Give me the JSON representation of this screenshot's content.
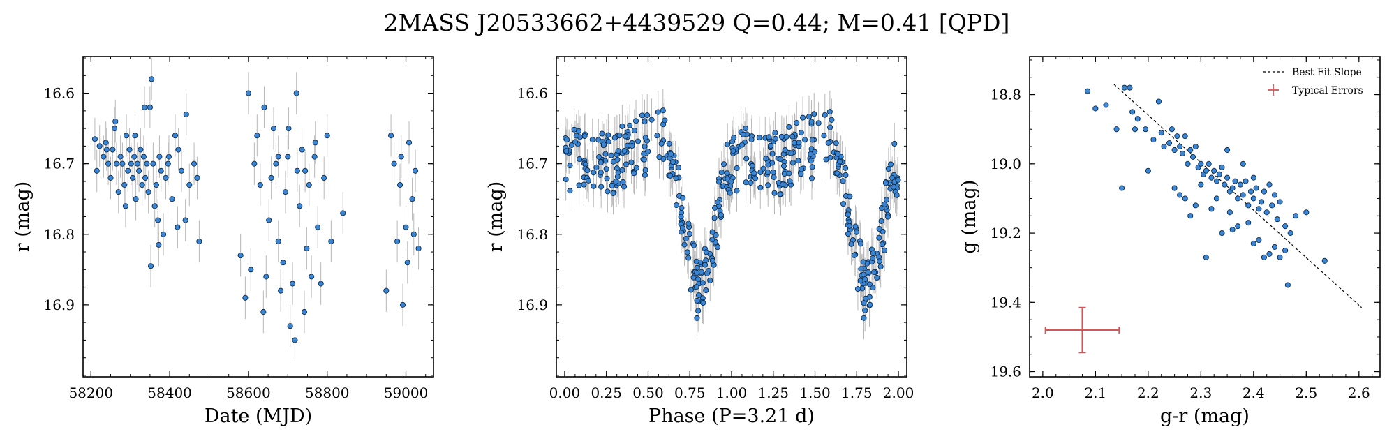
{
  "figure": {
    "title": "2MASS J20533662+4439529  Q=0.44; M=0.41 [QPD]"
  },
  "colors": {
    "marker_fill": "#3a86d4",
    "marker_edge": "#0d2a4a",
    "errorbar": "#b8b8b8",
    "typical_error": "#d05858",
    "fit_line": "#000000"
  },
  "chart_data": [
    {
      "type": "scatter",
      "title": "",
      "xlabel": "Date (MJD)",
      "ylabel": "r (mag)",
      "xlim": [
        58180,
        59070
      ],
      "ylim": [
        16.548,
        17.002
      ],
      "y_inverted": true,
      "xticks": [
        58200,
        58400,
        58600,
        58800,
        59000
      ],
      "yticks": [
        16.6,
        16.7,
        16.8,
        16.9
      ],
      "xticklabels": [
        "58200",
        "58400",
        "58600",
        "58800",
        "59000"
      ],
      "yticklabels": [
        "16.6",
        "16.7",
        "16.8",
        "16.9"
      ],
      "yerr": 0.03,
      "x": [
        58210,
        58215,
        58222,
        58232,
        58238,
        58244,
        58250,
        58255,
        58260,
        58265,
        58270,
        58275,
        58280,
        58285,
        58290,
        58294,
        58298,
        58302,
        58306,
        58310,
        58314,
        58318,
        58322,
        58326,
        58330,
        58334,
        58338,
        58342,
        58346,
        58350,
        58354,
        58358,
        58362,
        58366,
        58370,
        58374,
        58378,
        58384,
        58390,
        58398,
        58406,
        58414,
        58422,
        58430,
        58440,
        58450,
        58462,
        58475,
        58240,
        58262,
        58288,
        58312,
        58336,
        58352,
        58372,
        58396,
        58420,
        58442,
        58470,
        58580,
        58592,
        58606,
        58615,
        58622,
        58630,
        58638,
        58645,
        58652,
        58658,
        58664,
        58670,
        58676,
        58682,
        58688,
        58694,
        58700,
        58706,
        58712,
        58718,
        58724,
        58730,
        58736,
        58742,
        58748,
        58754,
        58760,
        58768,
        58776,
        58784,
        58792,
        58800,
        58810,
        58840,
        58600,
        58640,
        58676,
        58702,
        58722,
        58744,
        58770,
        58950,
        58962,
        58970,
        58978,
        58985,
        58992,
        59000,
        59008,
        59016,
        59024,
        59032,
        58988,
        59004,
        59020
      ],
      "y": [
        16.665,
        16.71,
        16.675,
        16.69,
        16.67,
        16.7,
        16.72,
        16.68,
        16.65,
        16.7,
        16.74,
        16.69,
        16.7,
        16.73,
        16.66,
        16.71,
        16.68,
        16.7,
        16.72,
        16.69,
        16.75,
        16.7,
        16.71,
        16.68,
        16.73,
        16.69,
        16.72,
        16.7,
        16.74,
        16.62,
        16.58,
        16.7,
        16.76,
        16.73,
        16.78,
        16.69,
        16.71,
        16.8,
        16.72,
        16.69,
        16.75,
        16.66,
        16.68,
        16.71,
        16.78,
        16.73,
        16.7,
        16.81,
        16.68,
        16.64,
        16.76,
        16.66,
        16.62,
        16.845,
        16.815,
        16.7,
        16.79,
        16.63,
        16.72,
        16.83,
        16.89,
        16.85,
        16.7,
        16.66,
        16.73,
        16.91,
        16.86,
        16.78,
        16.72,
        16.65,
        16.7,
        16.81,
        16.88,
        16.84,
        16.74,
        16.69,
        16.93,
        16.87,
        16.95,
        16.71,
        16.76,
        16.68,
        16.91,
        16.82,
        16.73,
        16.86,
        16.69,
        16.79,
        16.87,
        16.72,
        16.66,
        16.81,
        16.77,
        16.6,
        16.62,
        16.69,
        16.65,
        16.6,
        16.71,
        16.67,
        16.88,
        16.66,
        16.7,
        16.81,
        16.73,
        16.9,
        16.79,
        16.67,
        16.75,
        16.71,
        16.82,
        16.69,
        16.84,
        16.8
      ],
      "points": "r vs MJD"
    },
    {
      "type": "scatter",
      "title": "",
      "xlabel": "Phase (P=3.21 d)",
      "ylabel": "r (mag)",
      "xlim": [
        -0.05,
        2.05
      ],
      "ylim": [
        16.548,
        17.002
      ],
      "y_inverted": true,
      "xticks": [
        0.0,
        0.25,
        0.5,
        0.75,
        1.0,
        1.25,
        1.5,
        1.75,
        2.0
      ],
      "yticks": [
        16.6,
        16.7,
        16.8,
        16.9
      ],
      "xticklabels": [
        "0.00",
        "0.25",
        "0.50",
        "0.75",
        "1.00",
        "1.25",
        "1.50",
        "1.75",
        "2.00"
      ],
      "yticklabels": [
        "16.6",
        "16.7",
        "16.8",
        "16.9"
      ],
      "yerr": 0.03,
      "phase_profile": {
        "phase": [
          0.0,
          0.1,
          0.2,
          0.3,
          0.4,
          0.5,
          0.6,
          0.65,
          0.7,
          0.75,
          0.8,
          0.85,
          0.9,
          0.95,
          1.0
        ],
        "r_mag": [
          16.7,
          16.69,
          16.7,
          16.7,
          16.68,
          16.67,
          16.66,
          16.7,
          16.76,
          16.84,
          16.88,
          16.86,
          16.8,
          16.73,
          16.7
        ]
      }
    },
    {
      "type": "scatter",
      "title": "",
      "xlabel": "g-r (mag)",
      "ylabel": "g (mag)",
      "xlim": [
        1.975,
        2.64
      ],
      "ylim": [
        18.69,
        19.615
      ],
      "y_inverted": true,
      "xticks": [
        2.0,
        2.1,
        2.2,
        2.3,
        2.4,
        2.5,
        2.6
      ],
      "yticks": [
        18.8,
        19.0,
        19.2,
        19.4,
        19.6
      ],
      "xticklabels": [
        "2.0",
        "2.1",
        "2.2",
        "2.3",
        "2.4",
        "2.5",
        "2.6"
      ],
      "yticklabels": [
        "18.8",
        "19.0",
        "19.2",
        "19.4",
        "19.6"
      ],
      "legend": {
        "position": "upper right",
        "entries": [
          "Best Fit Slope",
          "Typical Errors"
        ]
      },
      "best_fit_line": {
        "x": [
          2.135,
          2.605
        ],
        "y": [
          18.77,
          19.415
        ]
      },
      "typical_error": {
        "x": 2.075,
        "y": 19.48,
        "xerr": 0.07,
        "yerr": 0.065
      },
      "x": [
        2.085,
        2.1,
        2.12,
        2.14,
        2.155,
        2.165,
        2.17,
        2.175,
        2.18,
        2.195,
        2.21,
        2.22,
        2.225,
        2.23,
        2.24,
        2.245,
        2.25,
        2.255,
        2.26,
        2.265,
        2.27,
        2.275,
        2.28,
        2.285,
        2.29,
        2.295,
        2.3,
        2.305,
        2.31,
        2.315,
        2.32,
        2.325,
        2.33,
        2.335,
        2.34,
        2.345,
        2.35,
        2.355,
        2.36,
        2.365,
        2.37,
        2.375,
        2.38,
        2.385,
        2.39,
        2.395,
        2.4,
        2.405,
        2.41,
        2.415,
        2.42,
        2.425,
        2.43,
        2.435,
        2.44,
        2.445,
        2.45,
        2.46,
        2.47,
        2.48,
        2.5,
        2.535,
        2.15,
        2.2,
        2.26,
        2.3,
        2.34,
        2.37,
        2.4,
        2.42,
        2.44,
        2.45,
        2.46,
        2.465,
        2.31,
        2.28,
        2.25,
        2.33,
        2.36,
        2.39,
        2.41,
        2.43,
        2.35,
        2.38,
        2.27,
        2.32,
        2.29,
        2.355,
        2.4
      ],
      "y": [
        18.79,
        18.84,
        18.83,
        18.9,
        18.78,
        18.78,
        18.85,
        18.9,
        18.87,
        18.9,
        18.93,
        18.82,
        18.91,
        18.95,
        18.94,
        18.9,
        18.96,
        18.92,
        18.95,
        18.97,
        18.92,
        19.0,
        18.96,
        18.98,
        18.95,
        19.01,
        19.0,
        19.03,
        19.02,
        19.0,
        19.04,
        19.02,
        19.05,
        19.03,
        19.01,
        19.06,
        19.04,
        19.08,
        19.07,
        19.05,
        19.1,
        19.06,
        19.09,
        19.05,
        19.12,
        19.08,
        19.1,
        19.07,
        19.13,
        19.11,
        19.08,
        19.14,
        19.06,
        19.12,
        19.09,
        19.16,
        19.11,
        19.18,
        19.2,
        19.15,
        19.14,
        19.28,
        19.07,
        19.02,
        19.09,
        19.06,
        19.2,
        19.18,
        19.23,
        19.27,
        19.24,
        19.27,
        19.25,
        19.35,
        19.27,
        19.15,
        19.07,
        19.1,
        19.19,
        19.17,
        19.22,
        19.26,
        18.96,
        19.0,
        19.1,
        19.13,
        19.12,
        19.14,
        19.04
      ]
    }
  ]
}
